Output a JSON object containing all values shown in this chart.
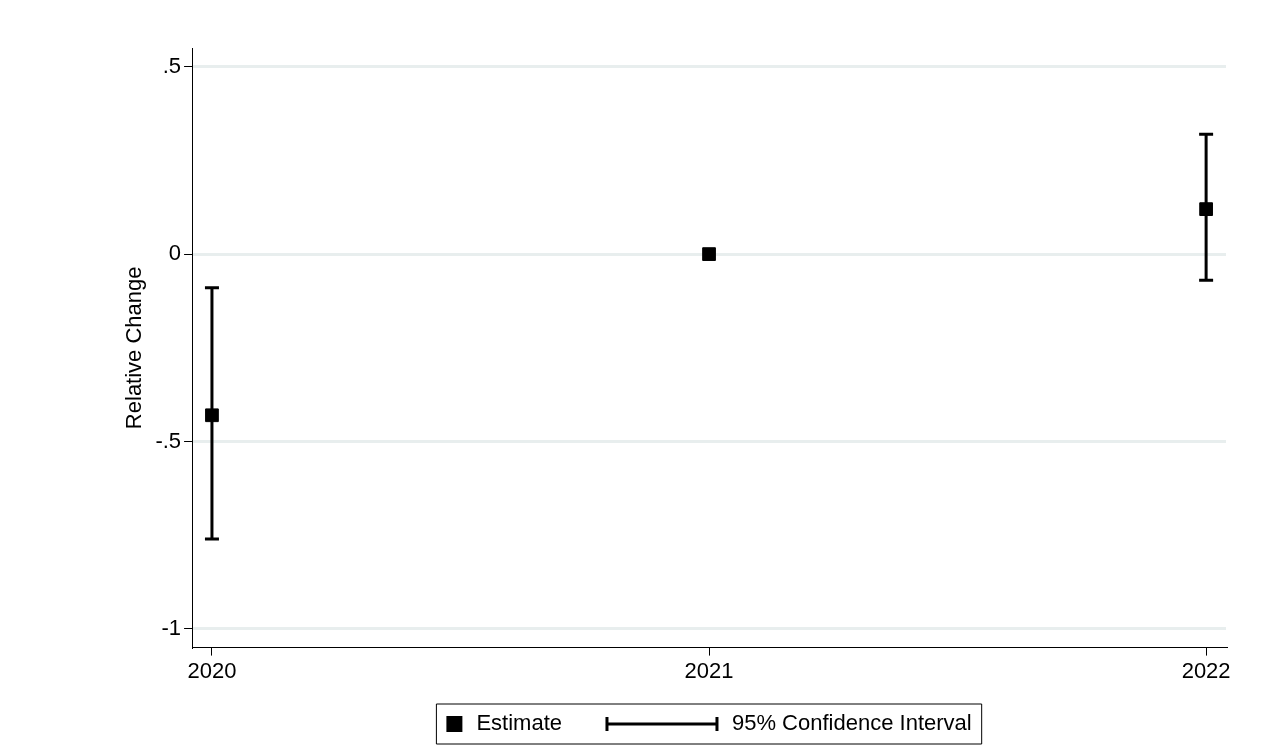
{
  "chart_data": {
    "type": "scatter",
    "ylabel": "Relative Change",
    "x": [
      2020,
      2021,
      2022
    ],
    "series": [
      {
        "name": "Estimate",
        "color": "#000000",
        "values": [
          -0.43,
          0,
          0.12
        ],
        "errors": [
          [
            -0.76,
            -0.09
          ],
          null,
          [
            -0.07,
            0.32
          ]
        ]
      }
    ],
    "xlim": [
      2019.96,
      2022.04
    ],
    "xticks": [
      2020,
      2021,
      2022
    ],
    "ylim": [
      -1.05,
      0.55
    ],
    "yticks": [
      {
        "value": -1,
        "label": "-1"
      },
      {
        "value": -0.5,
        "label": "-.5"
      },
      {
        "value": 0,
        "label": "0"
      },
      {
        "value": 0.5,
        "label": ".5"
      }
    ],
    "grid": "y",
    "marker": "square",
    "legend": "bottom",
    "annotations": [
      "95% Confidence Interval"
    ]
  }
}
